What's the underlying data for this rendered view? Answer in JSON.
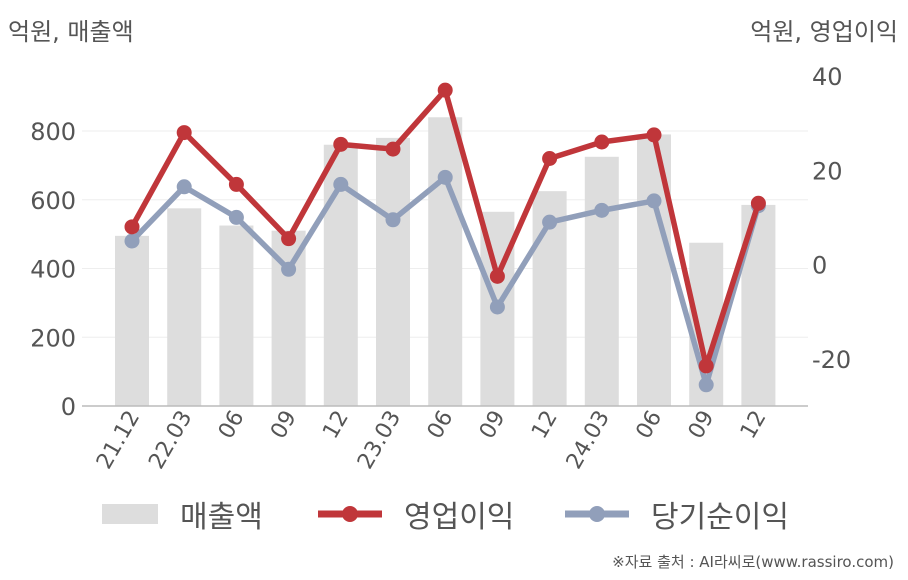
{
  "units": {
    "left": "억원, 매출액",
    "right": "억원, 영업이익"
  },
  "source": "※자료 출처 : AI라씨로(www.rassiro.com)",
  "colors": {
    "revenue": "#dddddd",
    "operating_profit": "#c0363a",
    "net_income": "#919fba"
  },
  "chart_data": {
    "type": "bar",
    "categories": [
      "21.12",
      "22.03",
      "06",
      "09",
      "12",
      "23.03",
      "06",
      "09",
      "12",
      "24.03",
      "06",
      "09",
      "12"
    ],
    "y_left": {
      "ticks": [
        0,
        200,
        400,
        600,
        800
      ],
      "range": [
        0,
        960
      ]
    },
    "y_right": {
      "ticks": [
        -20,
        0,
        20,
        40
      ],
      "range": [
        -30,
        40
      ]
    },
    "series": [
      {
        "name": "매출액",
        "type": "bar",
        "axis": "left",
        "values": [
          495,
          575,
          525,
          510,
          760,
          780,
          840,
          565,
          625,
          725,
          790,
          475,
          585
        ]
      },
      {
        "name": "영업이익",
        "type": "line",
        "axis": "right",
        "values": [
          8,
          28,
          17,
          5.5,
          25.5,
          24.5,
          37,
          -2.5,
          22.5,
          26,
          27.5,
          -21.5,
          13
        ]
      },
      {
        "name": "당기순이익",
        "type": "line",
        "axis": "right",
        "values": [
          5,
          16.5,
          10,
          -1,
          17,
          9.5,
          18.5,
          -9,
          9,
          11.5,
          13.5,
          -25.5,
          12.5
        ]
      }
    ]
  }
}
